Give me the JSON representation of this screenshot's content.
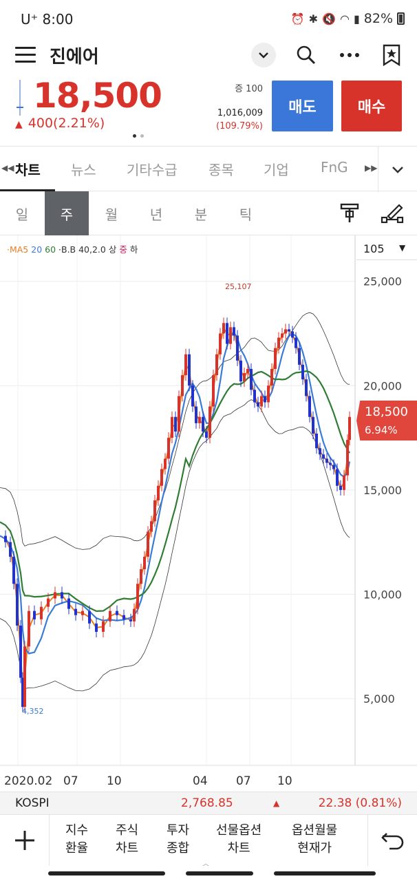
{
  "status_bar": {
    "carrier": "U⁺ 8:00",
    "battery": "82%"
  },
  "header": {
    "menu_icon": "hamburger-icon",
    "title": "진에어",
    "icons": [
      "chevron-down-icon",
      "search-icon",
      "more-icon",
      "bookmark-star-icon"
    ]
  },
  "quote": {
    "price": "18,500",
    "change": "400(2.21%)",
    "qty_label": "증 100",
    "volume": "1,016,009",
    "volume_pct": "(109.79%)",
    "sell_label": "매도",
    "buy_label": "매수"
  },
  "tabs": [
    {
      "label": "차트",
      "active": true
    },
    {
      "label": "뉴스"
    },
    {
      "label": "기타수급"
    },
    {
      "label": "종목"
    },
    {
      "label": "기업"
    },
    {
      "label": "FnG"
    }
  ],
  "periods": [
    {
      "label": "일"
    },
    {
      "label": "주",
      "active": true
    },
    {
      "label": "월"
    },
    {
      "label": "년"
    },
    {
      "label": "분"
    },
    {
      "label": "틱"
    }
  ],
  "chart_toolbar": [
    "indicator-icon",
    "drawing-tool-icon"
  ],
  "indicators": {
    "ma_label": "·MA5",
    "ma20": "20",
    "ma60": "60",
    "bb_label": "·B.B 40,2.0",
    "bb_upper": "상",
    "bb_mid": "중",
    "bb_lower": "하"
  },
  "scale_count": "105",
  "colors": {
    "up": "#d8332b",
    "down": "#2233cc",
    "ma5": "#e67e22",
    "ma20": "#3a7bd5",
    "ma60": "#2e7d32"
  },
  "chart_data": {
    "type": "candlestick",
    "y_ticks": [
      "25,000",
      "20,000",
      "15,000",
      "10,000",
      "5,000"
    ],
    "ylim": [
      1800,
      27200
    ],
    "x_ticks": [
      "2020.02",
      "07",
      "10",
      "04",
      "07",
      "10"
    ],
    "max_label": "25,107",
    "min_label": "4,352",
    "current_price": "18,500",
    "current_pct": "6.94%",
    "grid": true
  },
  "kospi": {
    "name": "KOSPI",
    "value": "2,768.85",
    "change": "22.38 (0.81%)"
  },
  "bottom_nav": [
    {
      "line1": "지수",
      "line2": "환율"
    },
    {
      "line1": "주식",
      "line2": "차트"
    },
    {
      "line1": "투자",
      "line2": "종합"
    },
    {
      "line1": "선물옵션",
      "line2": "차트"
    },
    {
      "line1": "옵션월물",
      "line2": "현재가"
    }
  ]
}
